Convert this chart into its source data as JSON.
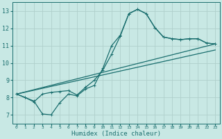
{
  "xlabel": "Humidex (Indice chaleur)",
  "xlim": [
    -0.5,
    23.5
  ],
  "ylim": [
    6.5,
    13.5
  ],
  "xticks": [
    0,
    1,
    2,
    3,
    4,
    5,
    6,
    7,
    8,
    9,
    10,
    11,
    12,
    13,
    14,
    15,
    16,
    17,
    18,
    19,
    20,
    21,
    22,
    23
  ],
  "yticks": [
    7,
    8,
    9,
    10,
    11,
    12,
    13
  ],
  "bg_color": "#c8e8e4",
  "line_color": "#1a6e6e",
  "grid_color": "#b0d0cc",
  "line1_x": [
    0,
    1,
    2,
    3,
    4,
    5,
    6,
    7,
    8,
    9,
    10,
    11,
    12,
    13,
    14,
    15,
    16,
    17,
    18,
    19,
    20,
    21,
    22,
    23
  ],
  "line1_y": [
    8.2,
    8.0,
    7.8,
    7.05,
    7.0,
    7.7,
    8.2,
    8.1,
    8.5,
    8.7,
    9.7,
    11.0,
    11.6,
    12.85,
    13.1,
    12.85,
    12.05,
    11.5,
    11.4,
    11.35,
    11.4,
    11.4,
    11.15,
    11.1
  ],
  "line2_x": [
    0,
    1,
    2,
    3,
    4,
    5,
    6,
    7,
    8,
    9,
    10,
    11,
    12,
    13,
    14,
    15,
    16,
    17,
    18,
    19,
    20,
    21,
    22,
    23
  ],
  "line2_y": [
    8.2,
    8.0,
    7.75,
    8.2,
    8.3,
    8.35,
    8.4,
    8.15,
    8.6,
    9.0,
    9.6,
    10.5,
    11.55,
    12.85,
    13.1,
    12.85,
    12.05,
    11.5,
    11.4,
    11.35,
    11.4,
    11.4,
    11.15,
    11.1
  ],
  "line3_x": [
    0,
    23
  ],
  "line3_y": [
    8.2,
    11.1
  ],
  "line4_x": [
    0,
    23
  ],
  "line4_y": [
    8.2,
    10.75
  ]
}
